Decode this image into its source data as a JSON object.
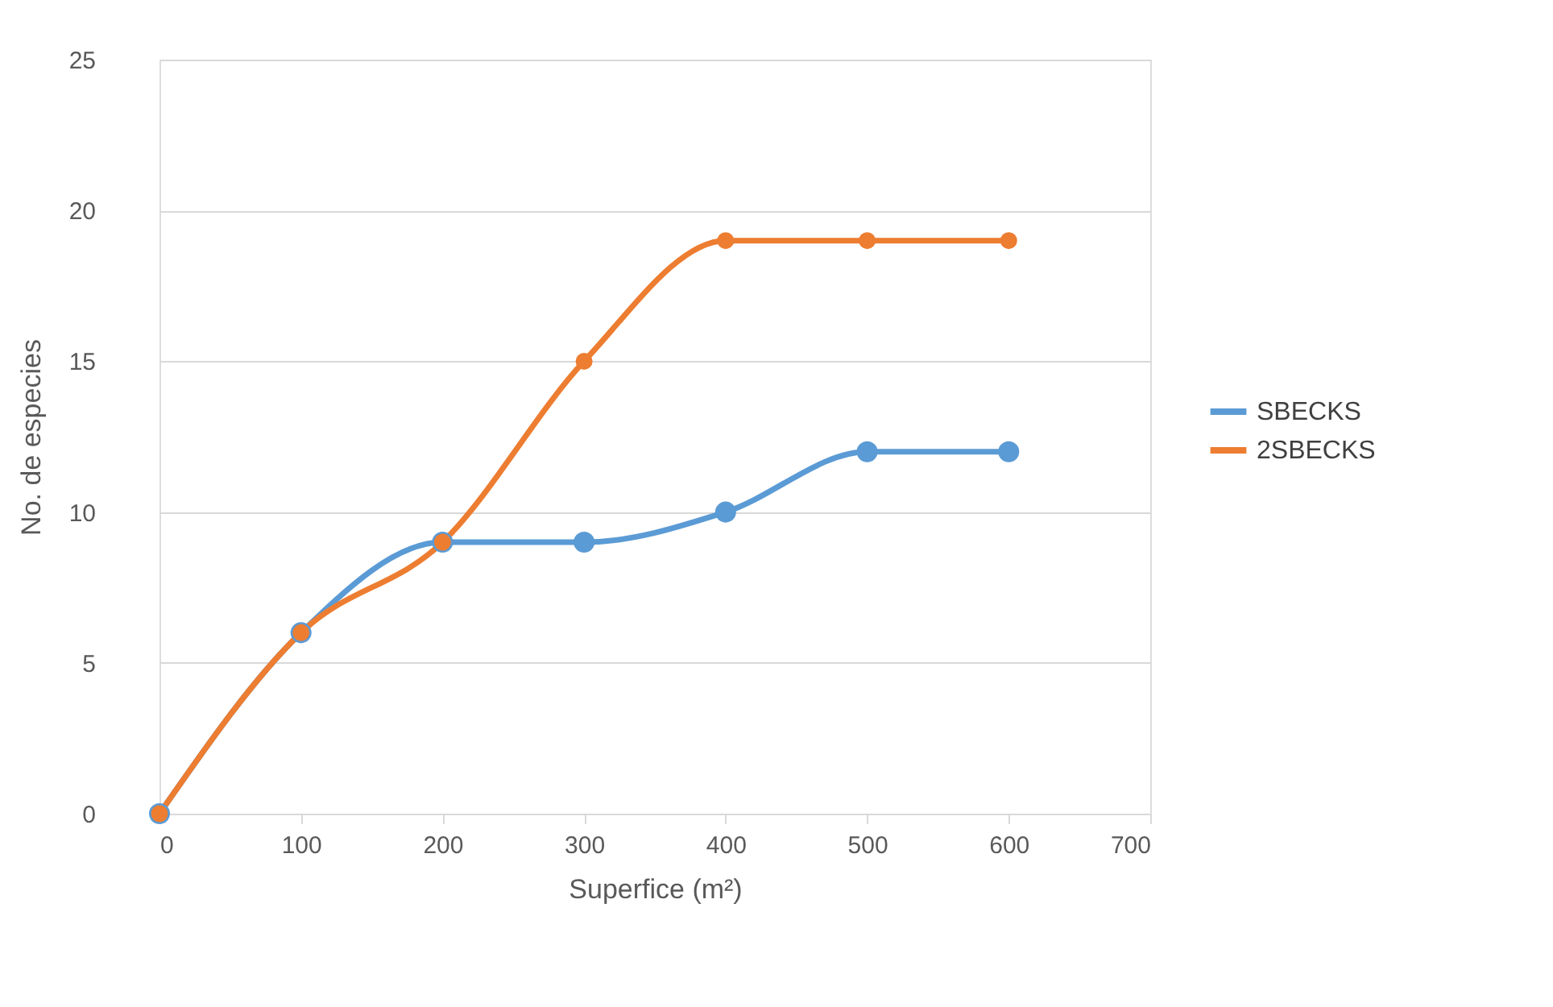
{
  "chart_data": {
    "type": "line",
    "xlabel": "Superfice (m²)",
    "ylabel": "No. de especies",
    "x": [
      0,
      100,
      200,
      300,
      400,
      500,
      600
    ],
    "series": [
      {
        "name": "SBECKS",
        "color": "#5b9bd5",
        "values": [
          0,
          6,
          9,
          9,
          10,
          12,
          12
        ]
      },
      {
        "name": "2SBECKS",
        "color": "#ed7d31",
        "values": [
          0,
          6,
          9,
          15,
          19,
          19,
          19
        ]
      }
    ],
    "xlim": [
      0,
      700
    ],
    "xticks": [
      0,
      100,
      200,
      300,
      400,
      500,
      600,
      700
    ],
    "ylim": [
      0,
      25
    ],
    "yticks": [
      0,
      5,
      10,
      15,
      20,
      25
    ],
    "grid": "y",
    "legend": "right",
    "marker": "circle",
    "line_style": "solid"
  }
}
